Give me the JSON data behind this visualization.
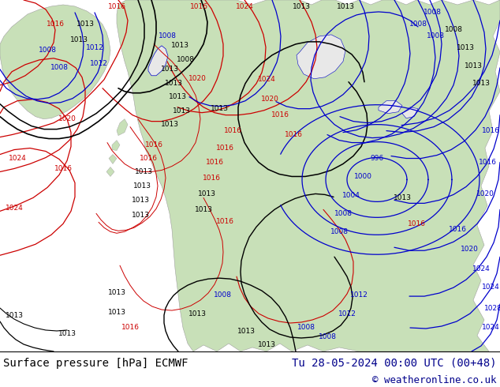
{
  "ocean_color": "#e8e8e8",
  "land_color": "#c8e0b8",
  "land_edge_color": "#a0a0a0",
  "title_left": "Surface pressure [hPa] ECMWF",
  "title_right": "Tu 28-05-2024 00:00 UTC (00+48)",
  "copyright": "© weatheronline.co.uk",
  "title_fontsize": 10,
  "copyright_fontsize": 9,
  "text_color_dark": "#00008b",
  "isobar_blue": "#0000cc",
  "isobar_red": "#cc0000",
  "isobar_black": "#000000",
  "label_blue": "#0000cc",
  "label_red": "#cc0000",
  "label_black": "#000000",
  "fig_width": 6.34,
  "fig_height": 4.9,
  "dpi": 100
}
